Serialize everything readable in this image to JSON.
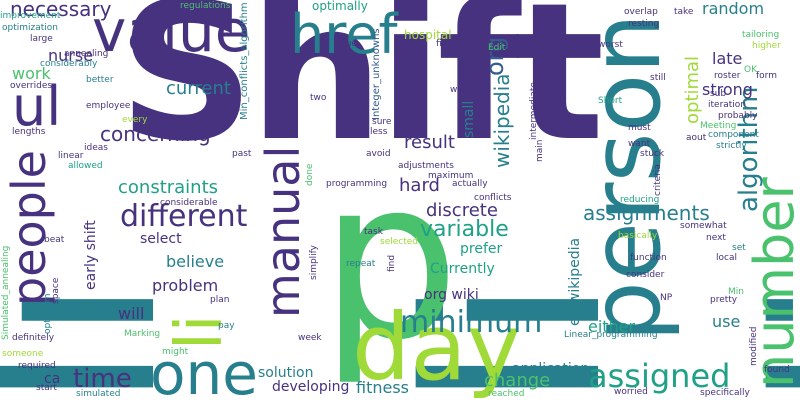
{
  "colors": {
    "background": "#ffffff",
    "palette": [
      "#46327e",
      "#365c8d",
      "#277f8e",
      "#1fa187",
      "#4ac16d",
      "#a0da39",
      "#fde725"
    ]
  },
  "words": [
    "Shift",
    "li",
    "p",
    "person",
    "day",
    "value",
    "one",
    "ul",
    "people",
    "href",
    "manual",
    "number",
    "algorithm",
    "different",
    "assigned",
    "minimum",
    "time",
    "org",
    "wikipedia",
    "concerning",
    "constraints",
    "variable",
    "assignments",
    "discrete",
    "hard",
    "result",
    "current",
    "optimal",
    "strong",
    "late",
    "random",
    "necessary",
    "nurse",
    "work",
    "small",
    "select",
    "believe",
    "problem",
    "will",
    "either",
    "use",
    "change",
    "fitness",
    "solution",
    "developing",
    "application",
    "prefer",
    "Currently",
    "org wiki",
    "en wikipedia",
    "early shift",
    "hospital",
    "optimally",
    "Min_conflicts_algorithm",
    "Integer_unknowns",
    "Simulated_annealing",
    "Linear_programming",
    "regulations",
    "improvement",
    "optimization",
    "annealing",
    "considerably",
    "overlap",
    "take",
    "tailoring",
    "higher",
    "form",
    "roster",
    "resting",
    "worst",
    "still",
    "iteration",
    "probably",
    "Meeting",
    "strictly",
    "component",
    "aout",
    "must",
    "want",
    "stuck",
    "criteria",
    "reducing",
    "somewhat",
    "basically",
    "next",
    "set",
    "local",
    "function",
    "consider",
    "Min",
    "NP",
    "pretty",
    "modified",
    "found",
    "specifically",
    "worried",
    "reached",
    "simulated",
    "start",
    "required",
    "someone",
    "definitely",
    "Marking",
    "might",
    "pay",
    "plan",
    "week",
    "repeat",
    "find",
    "selected",
    "task",
    "conflicts",
    "adjustments",
    "maximum",
    "actually",
    "programming",
    "done",
    "simplify",
    "avoid",
    "past",
    "less",
    "sure",
    "intermediate",
    "main",
    "working",
    "Edit",
    "fixed",
    "due",
    "two",
    "switches",
    "employee",
    "every",
    "better",
    "overrides",
    "large",
    "lengths",
    "optimum",
    "linear",
    "allowed",
    "ideas",
    "considerable",
    "beat",
    "space",
    "sub",
    "Short",
    "OK",
    "ca"
  ]
}
